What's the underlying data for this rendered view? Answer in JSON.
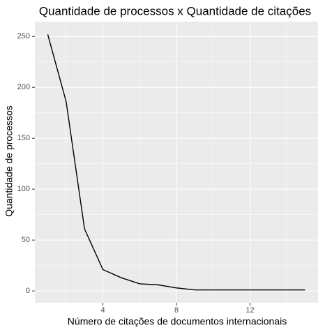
{
  "chart_data": {
    "type": "line",
    "title": "Quantidade de processos x Quantidade de citações",
    "xlabel": "Número de citações de documentos internacionais",
    "ylabel": "Quantidade de processos",
    "x": [
      1,
      2,
      3,
      4,
      5,
      6,
      7,
      8,
      9,
      10,
      11,
      12,
      13,
      14,
      15
    ],
    "series": [
      {
        "name": null,
        "color": "#000000",
        "values": [
          252,
          186,
          61,
          21,
          13,
          7,
          6,
          3,
          1,
          1,
          1,
          1,
          1,
          1,
          1
        ]
      }
    ],
    "xlim": [
      0.3,
      15.7
    ],
    "xticks": [
      4,
      8,
      12
    ],
    "ylim": [
      -11.55,
      264.55
    ],
    "yticks": [
      0,
      50,
      100,
      150,
      200,
      250
    ],
    "grid": true
  }
}
